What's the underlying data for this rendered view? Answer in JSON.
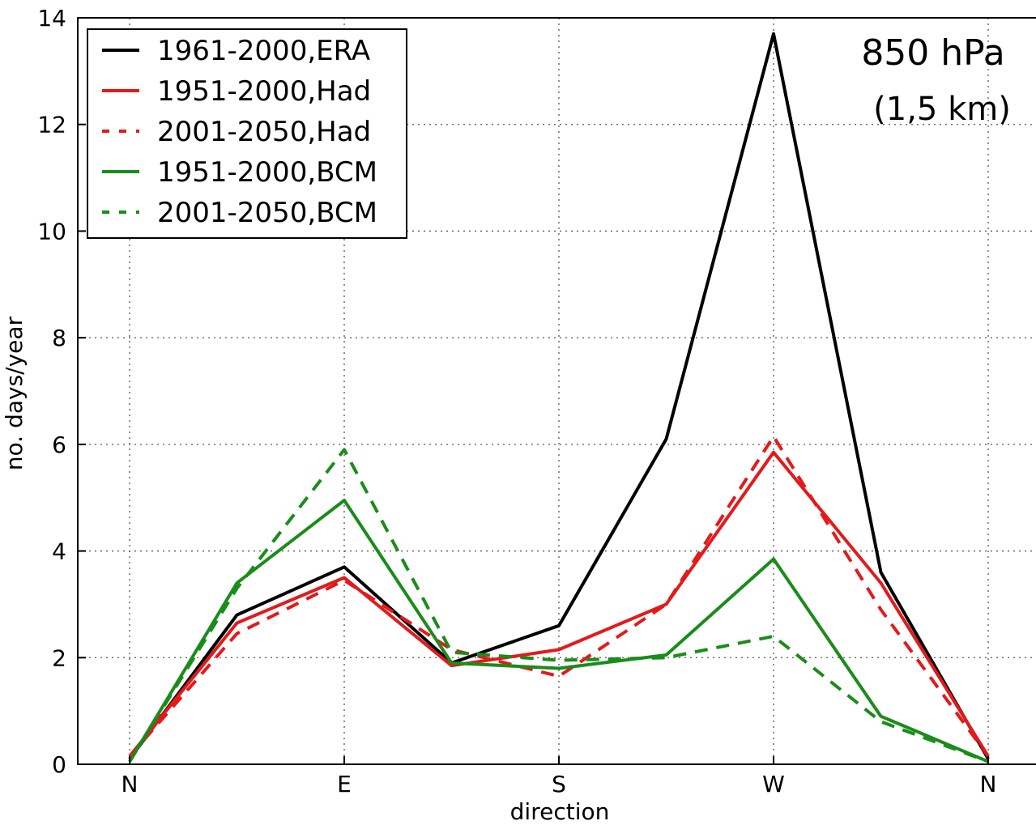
{
  "chart_data": {
    "type": "line",
    "title": "850 hPa",
    "subtitle": "(1,5 km)",
    "xlabel": "direction",
    "ylabel": "no. days/year",
    "xlim": [
      0,
      8.4
    ],
    "ylim": [
      0,
      14
    ],
    "x": [
      0,
      1,
      2,
      3,
      4,
      5,
      6,
      7,
      8
    ],
    "x_ticks": [
      {
        "x": 0,
        "label": "N"
      },
      {
        "x": 2,
        "label": "E"
      },
      {
        "x": 4,
        "label": "S"
      },
      {
        "x": 6,
        "label": "W"
      },
      {
        "x": 8,
        "label": "N"
      }
    ],
    "y_ticks": [
      0,
      2,
      4,
      6,
      8,
      10,
      12,
      14
    ],
    "grid": true,
    "legend_position": "top-left",
    "series": [
      {
        "name": "1961-2000,ERA",
        "color": "#000000",
        "dash": "solid",
        "values": [
          0.1,
          2.8,
          3.7,
          1.9,
          2.6,
          6.1,
          13.7,
          3.6,
          0.1
        ]
      },
      {
        "name": "1951-2000,Had",
        "color": "#e31a1c",
        "dash": "solid",
        "values": [
          0.15,
          2.65,
          3.5,
          1.85,
          2.15,
          3.0,
          5.85,
          3.4,
          0.15
        ]
      },
      {
        "name": "2001-2050,Had",
        "color": "#e31a1c",
        "dash": "dashed",
        "values": [
          0.15,
          2.45,
          3.45,
          2.15,
          1.65,
          3.0,
          6.15,
          2.9,
          0.15
        ]
      },
      {
        "name": "1951-2000,BCM",
        "color": "#1a8c1a",
        "dash": "solid",
        "values": [
          0.05,
          3.4,
          4.95,
          1.9,
          1.8,
          2.05,
          3.85,
          0.9,
          0.05
        ]
      },
      {
        "name": "2001-2050,BCM",
        "color": "#1a8c1a",
        "dash": "dashed",
        "values": [
          0.05,
          3.3,
          5.9,
          2.1,
          1.95,
          2.0,
          2.4,
          0.8,
          0.05
        ]
      }
    ]
  }
}
